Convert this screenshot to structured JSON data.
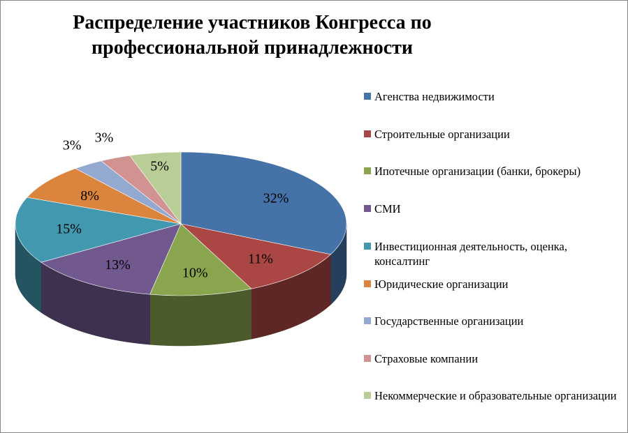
{
  "chart_data": {
    "type": "pie",
    "title_lines": [
      "Распределение участников Конгресса по",
      "профессиональной принадлежности"
    ],
    "legend_position": "right",
    "slices": [
      {
        "label": "Агенства недвижимости",
        "value": 32,
        "display": "32%",
        "color": "#4572A7"
      },
      {
        "label": "Строительные организации",
        "value": 11,
        "display": "11%",
        "color": "#AA4643"
      },
      {
        "label": "Ипотечные организации (банки, брокеры)",
        "value": 10,
        "display": "10%",
        "color": "#89A54E"
      },
      {
        "label": "СМИ",
        "value": 13,
        "display": "13%",
        "color": "#71588F"
      },
      {
        "label": "Инвестиционная деятельность, оценка, консалтинг",
        "value": 15,
        "display": "15%",
        "color": "#4198AF"
      },
      {
        "label": "Юридические организации",
        "value": 8,
        "display": "8%",
        "color": "#DB843D"
      },
      {
        "label": "Государственные организации",
        "value": 3,
        "display": "3%",
        "color": "#93A9CF"
      },
      {
        "label": "Страховые компании",
        "value": 3,
        "display": "3%",
        "color": "#D19392"
      },
      {
        "label": "Некоммерческие и образовательные организации",
        "value": 5,
        "display": "5%",
        "color": "#B9CD96"
      }
    ]
  }
}
